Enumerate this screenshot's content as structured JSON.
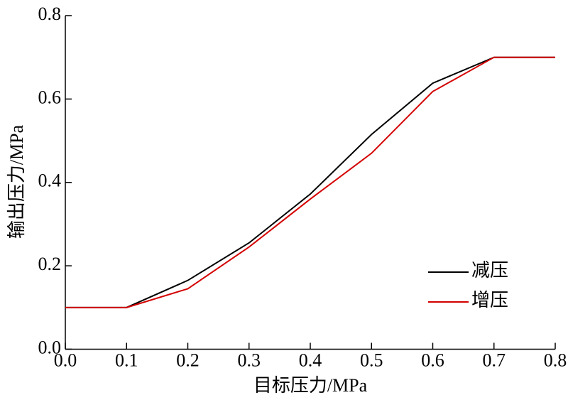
{
  "chart_data": {
    "type": "line",
    "x_label": "目标压力/MPa",
    "y_label": "输出压力/MPa",
    "x": [
      0,
      0.1,
      0.2,
      0.3,
      0.4,
      0.5,
      0.6,
      0.7,
      0.8
    ],
    "series": [
      {
        "name": "减压",
        "color": "#000000",
        "values": [
          0.1,
          0.1,
          0.165,
          0.255,
          0.372,
          0.515,
          0.638,
          0.7,
          0.7
        ]
      },
      {
        "name": "增压",
        "color": "#d40000",
        "values": [
          0.1,
          0.1,
          0.145,
          0.245,
          0.36,
          0.47,
          0.618,
          0.7,
          0.7
        ]
      }
    ],
    "xlim": [
      0,
      0.8
    ],
    "xticks": [
      {
        "value": 0,
        "label": "0.0"
      },
      0.1,
      0.2,
      0.3,
      0.4,
      0.5,
      0.6,
      0.7,
      0.8
    ],
    "ylim": [
      0,
      0.8
    ],
    "yticks": [
      {
        "value": 0,
        "label": "0.0"
      },
      0.2,
      0.4,
      0.6,
      0.8
    ],
    "legend": "lower right",
    "grid": false
  }
}
